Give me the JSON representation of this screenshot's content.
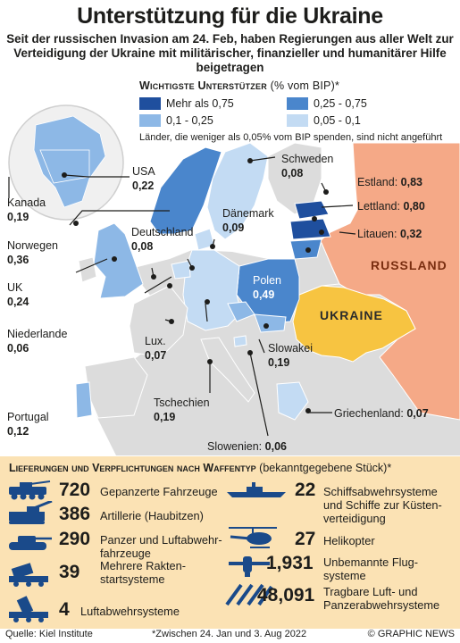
{
  "title": "Unterstützung für die Ukraine",
  "subtitle": "Seit der russischen Invasion am 24. Feb, haben Regierungen aus aller Welt zur Verteidigung der Ukraine mit militärischer, finanzieller und humanitärer Hilfe beigetragen",
  "legend": {
    "title": "Wichtigste Unterstützer",
    "unit": "(% vom BIP)*",
    "items": [
      {
        "label": "Mehr als 0,75",
        "color": "#1f4f9e"
      },
      {
        "label": "0,25 - 0,75",
        "color": "#4a86cc"
      },
      {
        "label": "0,1 - 0,25",
        "color": "#8db8e6"
      },
      {
        "label": "0,05 - 0,1",
        "color": "#c3dbf3"
      }
    ],
    "note": "Länder, die weniger als 0,05% vom BIP spenden, sind nicht angeführt"
  },
  "countries": [
    {
      "name": "USA",
      "value": "0,22"
    },
    {
      "name": "Kanada",
      "value": "0,19"
    },
    {
      "name": "Norwegen",
      "value": "0,36"
    },
    {
      "name": "UK",
      "value": "0,24"
    },
    {
      "name": "Niederlande",
      "value": "0,06"
    },
    {
      "name": "Portugal",
      "value": "0,12"
    },
    {
      "name": "Deutschland",
      "value": "0,08"
    },
    {
      "name": "Dänemark",
      "value": "0,09"
    },
    {
      "name": "Schweden",
      "value": "0,08"
    },
    {
      "name": "Estland:",
      "value": "0,83"
    },
    {
      "name": "Lettland:",
      "value": "0,80"
    },
    {
      "name": "Litauen:",
      "value": "0,32"
    },
    {
      "name": "Polen",
      "value": "0,49"
    },
    {
      "name": "Lux.",
      "value": "0,07"
    },
    {
      "name": "Slowakei",
      "value": "0,19"
    },
    {
      "name": "Tschechien",
      "value": "0,19"
    },
    {
      "name": "Griechenland:",
      "value": "0,07"
    },
    {
      "name": "Slowenien:",
      "value": "0,06"
    }
  ],
  "region_labels": {
    "russia": "RUSSLAND",
    "ukraine": "UKRAINE"
  },
  "colors": {
    "russia": "#f5a987",
    "ukraine": "#f7c441",
    "land": "#dcdcdc",
    "sea": "#ffffff",
    "panel": "#fbe2b4",
    "icon": "#1a4a8a"
  },
  "weapons": {
    "title": "Lieferungen und Verpflichtungen nach Waffentyp",
    "unit": "(bekanntgegebene Stück)*",
    "items": [
      {
        "icon": "armored-vehicle-icon",
        "count": "720",
        "label": "Gepanzerte Fahrzeuge"
      },
      {
        "icon": "artillery-icon",
        "count": "386",
        "label": "Artillerie (Haubitzen)"
      },
      {
        "icon": "tank-icon",
        "count": "290",
        "label": "Panzer und Luftabwehr-\nfahrzeuge"
      },
      {
        "icon": "rocket-launcher-icon",
        "count": "39",
        "label": "Mehrere Rakten-\nstartsysteme"
      },
      {
        "icon": "air-defense-icon",
        "count": "4",
        "label": "Luftabwehrsysteme"
      },
      {
        "icon": "warship-icon",
        "count": "22",
        "label": "Schiffsabwehrsysteme\nund Schiffe zur Küsten-\nverteidigung"
      },
      {
        "icon": "helicopter-icon",
        "count": "27",
        "label": "Helikopter"
      },
      {
        "icon": "drone-icon",
        "count": "1,931",
        "label": "Unbemannte Flug-\nsysteme"
      },
      {
        "icon": "missiles-icon",
        "count": "48,091",
        "label": "Tragbare Luft- und\nPanzerabwehrsysteme"
      }
    ]
  },
  "footer": {
    "source": "Quelle: Kiel Institute",
    "note": "*Zwischen 24. Jan und 3. Aug 2022",
    "credit": "© GRAPHIC NEWS"
  }
}
